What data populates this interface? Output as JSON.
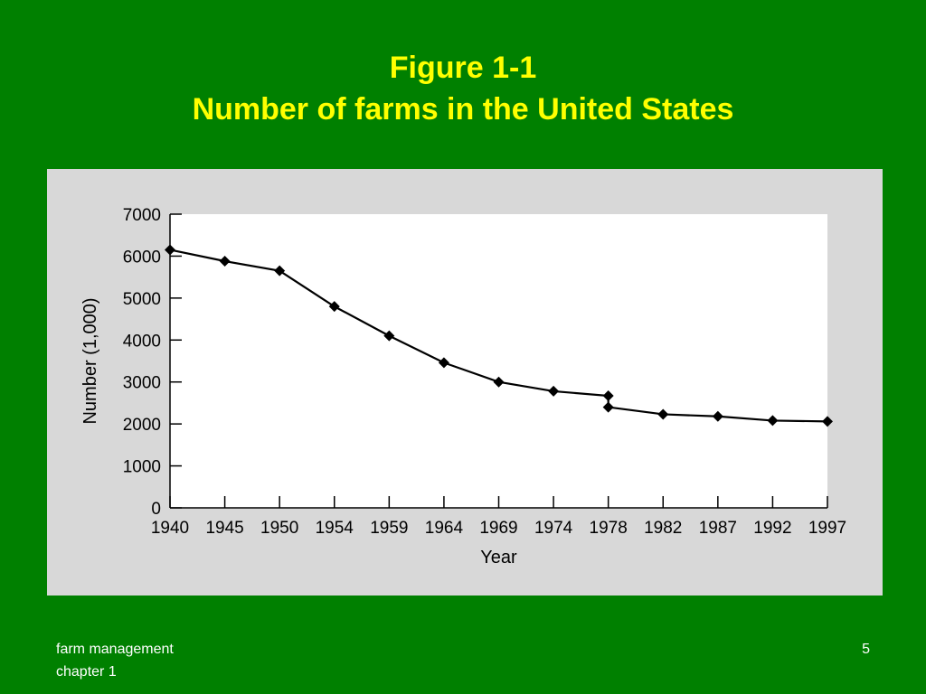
{
  "slide": {
    "title_line1": "Figure 1-1",
    "title_line2": "Number of farms in the United States",
    "footer_line1": "farm management",
    "footer_line2": "chapter 1",
    "page_number": "5"
  },
  "colors": {
    "slide_background": "#008000",
    "title_text": "#ffff00",
    "footer_text": "#ffffff",
    "chart_panel": "#d8d8d8",
    "plot_area": "#ffffff",
    "series": "#000000"
  },
  "chart_data": {
    "type": "line",
    "title": "",
    "xlabel": "Year",
    "ylabel": "Number (1,000)",
    "categories": [
      "1940",
      "1945",
      "1950",
      "1954",
      "1959",
      "1964",
      "1969",
      "1974",
      "1978",
      "1982",
      "1987",
      "1992",
      "1997"
    ],
    "yticks": [
      0,
      1000,
      2000,
      3000,
      4000,
      5000,
      6000,
      7000
    ],
    "ylim": [
      0,
      7000
    ],
    "grid": false,
    "legend": "none",
    "marker": "diamond",
    "series": [
      {
        "points": [
          {
            "x": "1940",
            "y": 6150
          },
          {
            "x": "1945",
            "y": 5880
          },
          {
            "x": "1950",
            "y": 5650
          },
          {
            "x": "1954",
            "y": 4800
          },
          {
            "x": "1959",
            "y": 4100
          },
          {
            "x": "1964",
            "y": 3460
          },
          {
            "x": "1969",
            "y": 3000
          },
          {
            "x": "1974",
            "y": 2780
          },
          {
            "x": "1978",
            "y": 2670
          },
          {
            "x": "1978",
            "y": 2400
          },
          {
            "x": "1982",
            "y": 2230
          },
          {
            "x": "1987",
            "y": 2180
          },
          {
            "x": "1992",
            "y": 2080
          },
          {
            "x": "1997",
            "y": 2060
          }
        ]
      }
    ]
  }
}
